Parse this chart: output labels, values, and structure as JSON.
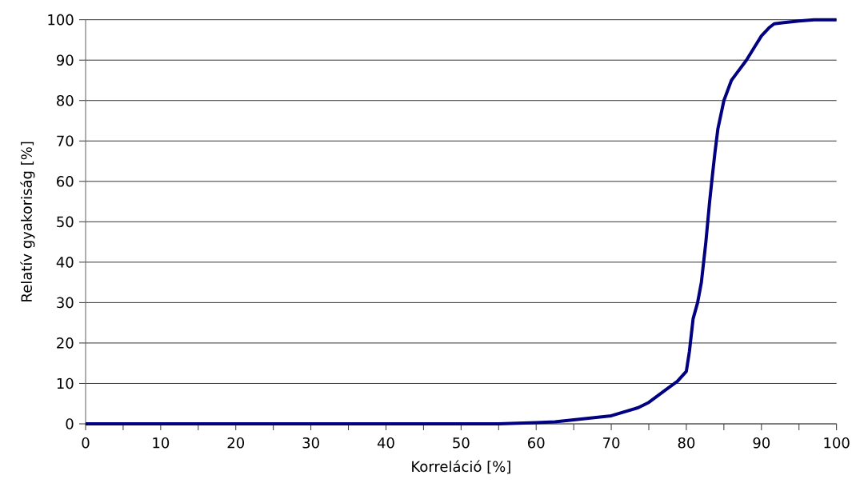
{
  "chart_data": {
    "type": "line",
    "xlabel": "Korreláció [%]",
    "ylabel": "Relatív gyakoriság [%]",
    "x": [
      0,
      55,
      60,
      62.5,
      65,
      70,
      73.6,
      75,
      77.3,
      78.8,
      80,
      80.4,
      80.9,
      81.5,
      82,
      82.6,
      83.1,
      83.5,
      83.8,
      84.2,
      85,
      86,
      86.6,
      88,
      89,
      90,
      91,
      91.7,
      93,
      95,
      97,
      100
    ],
    "series": [
      {
        "color": "#000080",
        "values": [
          0,
          0,
          0.3,
          0.5,
          1,
          2,
          4,
          5.3,
          8.5,
          10.5,
          13,
          17.8,
          26,
          30,
          35,
          45,
          55,
          62,
          67,
          73,
          80,
          85,
          86.5,
          90,
          93,
          96,
          98,
          99,
          99.3,
          99.7,
          100,
          100
        ]
      }
    ],
    "xlim": [
      0,
      100
    ],
    "ylim": [
      0,
      100
    ],
    "xticks": [
      0,
      {
        "value": 5,
        "label": null
      },
      10,
      {
        "value": 15,
        "label": null
      },
      20,
      {
        "value": 25,
        "label": null
      },
      30,
      {
        "value": 35,
        "label": null
      },
      40,
      {
        "value": 45,
        "label": null
      },
      50,
      {
        "value": 55,
        "label": null
      },
      60,
      {
        "value": 65,
        "label": null
      },
      70,
      {
        "value": 75,
        "label": null
      },
      80,
      {
        "value": 85,
        "label": null
      },
      90,
      {
        "value": 95,
        "label": null
      },
      100
    ],
    "yticks": [
      0,
      10,
      20,
      30,
      40,
      50,
      60,
      70,
      80,
      90,
      100
    ],
    "grid": "y",
    "marker": "none",
    "line_style": "solid"
  }
}
